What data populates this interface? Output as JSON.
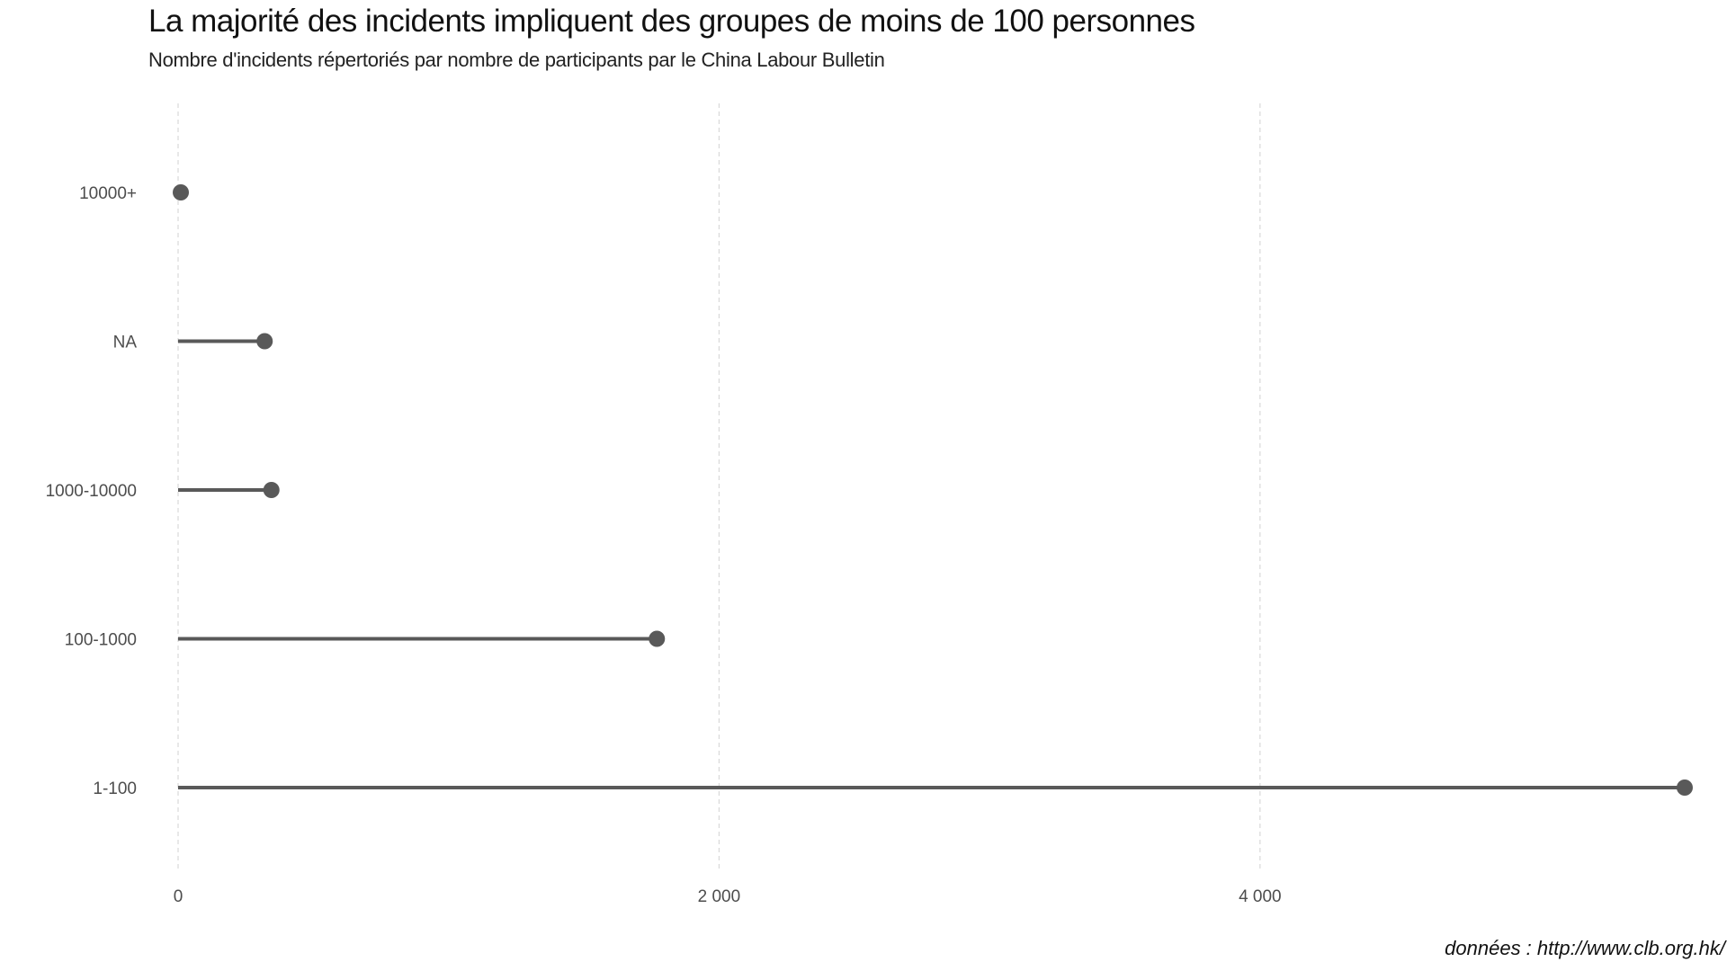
{
  "chart_data": {
    "type": "lollipop",
    "title": "La majorité des incidents impliquent des groupes de moins de 100 personnes",
    "subtitle": "Nombre d'incidents répertoriés par nombre de participants par le China Labour Bulletin",
    "caption": "données : http://www.clb.org.hk/",
    "xlabel": "",
    "ylabel": "",
    "categories": [
      "10000+",
      "NA",
      "1000-10000",
      "100-1000",
      "1-100"
    ],
    "values": [
      10,
      320,
      345,
      1770,
      5570
    ],
    "xlim": [
      0,
      5600
    ],
    "x_ticks": [
      0,
      2000,
      4000
    ],
    "x_tick_labels": [
      "0",
      "2 000",
      "4 000"
    ],
    "grid": "vertical-dashed",
    "colors": {
      "mark": "#595959",
      "grid": "#d9d9d9",
      "tick_text": "#4d4d4d"
    }
  }
}
